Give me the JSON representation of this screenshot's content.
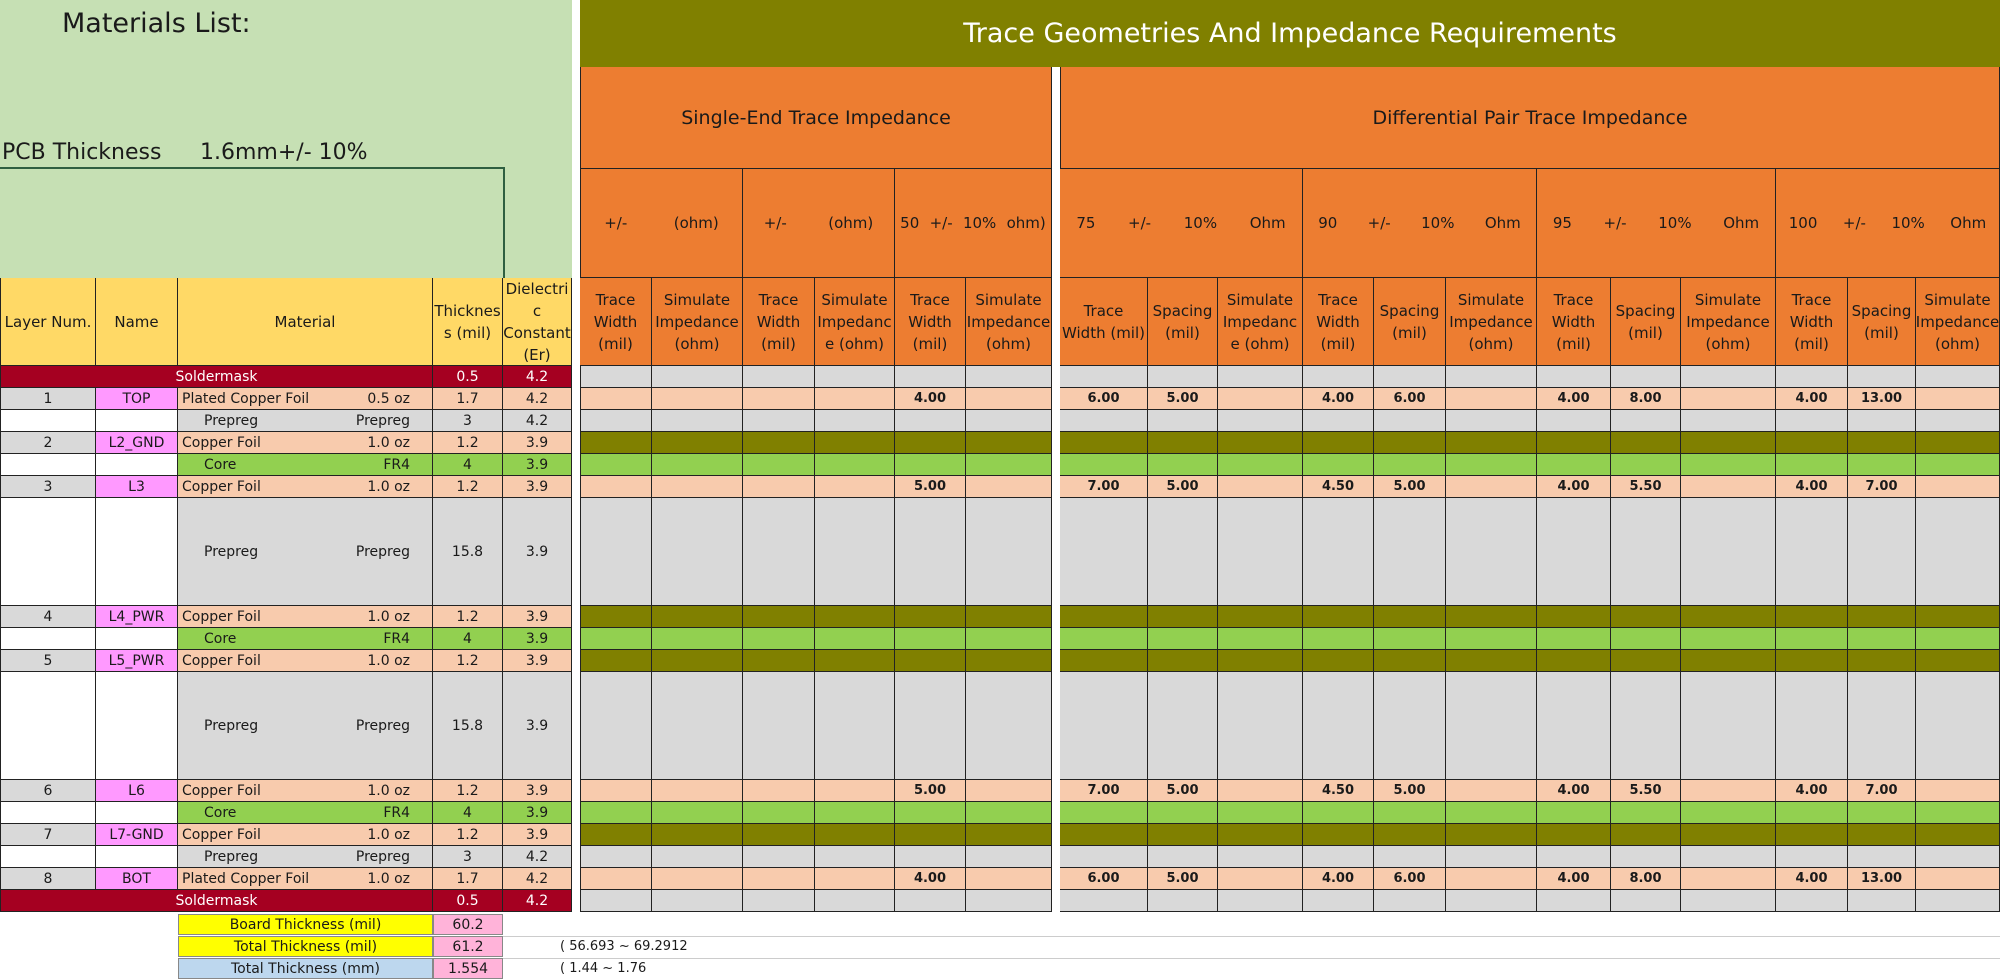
{
  "title": "Materials List:",
  "pcb_thickness": {
    "label": "PCB Thickness",
    "value": "1.6mm+/- 10%"
  },
  "right_title": "Trace Geometries And Impedance Requirements",
  "group_headers": {
    "single": "Single-End Trace Impedance",
    "diff": "Differential Pair Trace Impedance"
  },
  "spec_headers": [
    {
      "parts": [
        "+/-",
        "(ohm)"
      ]
    },
    {
      "parts": [
        "+/-",
        "(ohm)"
      ]
    },
    {
      "parts": [
        "50",
        "+/-",
        "10%",
        "ohm)"
      ]
    },
    {
      "parts": [
        "75",
        "+/-",
        "10%",
        "Ohm"
      ]
    },
    {
      "parts": [
        "90",
        "+/-",
        "10%",
        "Ohm"
      ]
    },
    {
      "parts": [
        "95",
        "+/-",
        "10%",
        "Ohm"
      ]
    },
    {
      "parts": [
        "100",
        "+/-",
        "10%",
        "Ohm"
      ]
    }
  ],
  "left_headers": [
    "Layer Num.",
    "Name",
    "Material",
    "Thicknes s (mil)",
    "Dielectri c Constant (Er)"
  ],
  "right_headers": [
    "Trace Width (mil)",
    "Simulate Impedance (ohm)",
    "Trace Width (mil)",
    "Simulate Impedanc e (ohm)",
    "Trace Width (mil)",
    "Simulate Impedance (ohm)",
    "Trace Width (mil)",
    "Spacing (mil)",
    "Simulate Impedanc e (ohm)",
    "Trace Width (mil)",
    "Spacing (mil)",
    "Simulate Impedance (ohm)",
    "Trace Width (mil)",
    "Spacing (mil)",
    "Simulate Impedance (ohm)",
    "Trace Width (mil)",
    "Spacing (mil)",
    "Simulate Impedance (ohm)"
  ],
  "rows": [
    {
      "type": "soldermask",
      "num": "",
      "name": "Soldermask",
      "mat": "",
      "sub": "",
      "th": "0.5",
      "er": "4.2",
      "vals": {}
    },
    {
      "type": "copper",
      "num": "1",
      "name": "TOP",
      "mat": "Plated Copper Foil",
      "sub": "0.5 oz",
      "th": "1.7",
      "er": "4.2",
      "vals": {
        "4": "4.00",
        "6": "6.00",
        "7": "5.00",
        "9": "4.00",
        "10": "6.00",
        "12": "4.00",
        "13": "8.00",
        "15": "4.00",
        "16": "13.00"
      }
    },
    {
      "type": "prepreg",
      "num": "",
      "name": "",
      "mat": "Prepreg",
      "sub": "Prepreg",
      "th": "3",
      "er": "4.2",
      "vals": {}
    },
    {
      "type": "plane",
      "num": "2",
      "name": "L2_GND",
      "mat": "Copper Foil",
      "sub": "1.0 oz",
      "th": "1.2",
      "er": "3.9",
      "vals": {}
    },
    {
      "type": "core",
      "num": "",
      "name": "",
      "mat": "Core",
      "sub": "FR4",
      "th": "4",
      "er": "3.9",
      "vals": {}
    },
    {
      "type": "copper",
      "num": "3",
      "name": "L3",
      "mat": "Copper Foil",
      "sub": "1.0 oz",
      "th": "1.2",
      "er": "3.9",
      "vals": {
        "4": "5.00",
        "6": "7.00",
        "7": "5.00",
        "9": "4.50",
        "10": "5.00",
        "12": "4.00",
        "13": "5.50",
        "15": "4.00",
        "16": "7.00"
      }
    },
    {
      "type": "prepreg",
      "num": "",
      "name": "",
      "mat": "Prepreg",
      "sub": "Prepreg",
      "th": "15.8",
      "er": "3.9",
      "vals": {}
    },
    {
      "type": "plane",
      "num": "4",
      "name": "L4_PWR",
      "mat": "Copper Foil",
      "sub": "1.0 oz",
      "th": "1.2",
      "er": "3.9",
      "vals": {}
    },
    {
      "type": "core",
      "num": "",
      "name": "",
      "mat": "Core",
      "sub": "FR4",
      "th": "4",
      "er": "3.9",
      "vals": {}
    },
    {
      "type": "plane",
      "num": "5",
      "name": "L5_PWR",
      "mat": "Copper Foil",
      "sub": "1.0 oz",
      "th": "1.2",
      "er": "3.9",
      "vals": {}
    },
    {
      "type": "prepreg",
      "num": "",
      "name": "",
      "mat": "Prepreg",
      "sub": "Prepreg",
      "th": "15.8",
      "er": "3.9",
      "vals": {}
    },
    {
      "type": "copper",
      "num": "6",
      "name": "L6",
      "mat": "Copper Foil",
      "sub": "1.0 oz",
      "th": "1.2",
      "er": "3.9",
      "vals": {
        "4": "5.00",
        "6": "7.00",
        "7": "5.00",
        "9": "4.50",
        "10": "5.00",
        "12": "4.00",
        "13": "5.50",
        "15": "4.00",
        "16": "7.00"
      }
    },
    {
      "type": "core",
      "num": "",
      "name": "",
      "mat": "Core",
      "sub": "FR4",
      "th": "4",
      "er": "3.9",
      "vals": {}
    },
    {
      "type": "plane",
      "num": "7",
      "name": "L7-GND",
      "mat": "Copper Foil",
      "sub": "1.0 oz",
      "th": "1.2",
      "er": "3.9",
      "vals": {}
    },
    {
      "type": "prepreg",
      "num": "",
      "name": "",
      "mat": "Prepreg",
      "sub": "Prepreg",
      "th": "3",
      "er": "4.2",
      "vals": {}
    },
    {
      "type": "copper",
      "num": "8",
      "name": "BOT",
      "mat": "Plated Copper Foil",
      "sub": "1.0 oz",
      "th": "1.7",
      "er": "4.2",
      "vals": {
        "4": "4.00",
        "6": "6.00",
        "7": "5.00",
        "9": "4.00",
        "10": "6.00",
        "12": "4.00",
        "13": "8.00",
        "15": "4.00",
        "16": "13.00"
      }
    },
    {
      "type": "soldermask",
      "num": "",
      "name": "Soldermask",
      "mat": "",
      "sub": "",
      "th": "0.5",
      "er": "4.2",
      "vals": {}
    }
  ],
  "summary": [
    {
      "label": "Board Thickness (mil)",
      "value": "60.2",
      "range": ""
    },
    {
      "label": "Total Thickness (mil)",
      "value": "61.2",
      "range": "( 56.693   ~   69.2912"
    },
    {
      "label": "Total Thickness (mm)",
      "value": "1.554",
      "range": "( 1.44   ~   1.76"
    }
  ],
  "colors": {
    "green_bg": "#c6e0b4",
    "olive": "#808000",
    "orange": "#ed7d31",
    "yellow_hdr": "#ffd966",
    "soldermask": "#a50021",
    "pink": "#ff99ff",
    "peach": "#f8cbad",
    "light_gray": "#d9d9d9",
    "core_green": "#92d050",
    "yellow": "#ffff00",
    "pink_light": "#ffb3d9",
    "blue_light": "#bdd7ee"
  }
}
